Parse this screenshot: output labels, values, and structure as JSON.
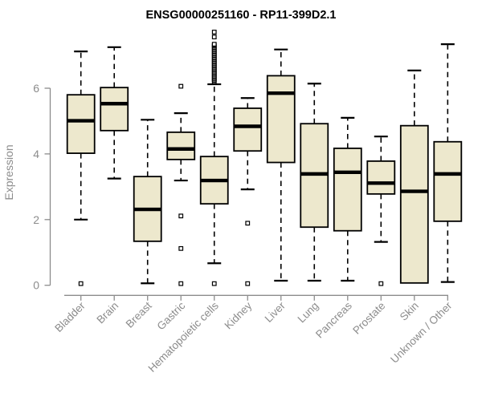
{
  "page": {
    "background": "#ffffff"
  },
  "chart_data": {
    "type": "boxplot",
    "title": "ENSG00000251160 - RP11-399D2.1",
    "ylabel": "Expression",
    "xlabel": "",
    "yticks": [
      0,
      2,
      4,
      6
    ],
    "ylim": [
      -0.15,
      7.9
    ],
    "grid": false,
    "legend": false,
    "categories": [
      "Bladder",
      "Brain",
      "Breast",
      "Gastric",
      "Hematopoietic cells",
      "Kidney",
      "Liver",
      "Lung",
      "Pancreas",
      "Prostate",
      "Skin",
      "Unknown / Other"
    ],
    "series": [
      {
        "name": "Bladder",
        "whisker_low": 2.0,
        "q1": 4.02,
        "median": 5.01,
        "q3": 5.8,
        "whisker_high": 7.12,
        "outliers": [
          0.05
        ]
      },
      {
        "name": "Brain",
        "whisker_low": 3.25,
        "q1": 4.71,
        "median": 5.53,
        "q3": 6.02,
        "whisker_high": 7.25,
        "outliers": []
      },
      {
        "name": "Breast",
        "whisker_low": 0.06,
        "q1": 1.34,
        "median": 2.31,
        "q3": 3.31,
        "whisker_high": 5.04,
        "outliers": []
      },
      {
        "name": "Gastric",
        "whisker_low": 3.19,
        "q1": 3.83,
        "median": 4.15,
        "q3": 4.66,
        "whisker_high": 5.24,
        "outliers": [
          6.06,
          2.11,
          1.12,
          0.05
        ]
      },
      {
        "name": "Hematopoietic cells",
        "whisker_low": 0.67,
        "q1": 2.48,
        "median": 3.19,
        "q3": 3.92,
        "whisker_high": 6.12,
        "outliers": [
          0.05,
          6.2,
          6.24,
          6.28,
          6.32,
          6.36,
          6.4,
          6.44,
          6.48,
          6.52,
          6.56,
          6.6,
          6.64,
          6.68,
          6.72,
          6.76,
          6.8,
          6.84,
          6.88,
          6.92,
          6.96,
          7.0,
          7.04,
          7.08,
          7.12,
          7.16,
          7.2,
          7.24,
          7.28,
          7.31,
          7.34,
          7.56,
          7.71
        ]
      },
      {
        "name": "Kidney",
        "whisker_low": 2.92,
        "q1": 4.09,
        "median": 4.84,
        "q3": 5.39,
        "whisker_high": 5.7,
        "outliers": [
          1.89,
          0.05
        ]
      },
      {
        "name": "Liver",
        "whisker_low": 0.14,
        "q1": 3.74,
        "median": 5.85,
        "q3": 6.38,
        "whisker_high": 7.18,
        "outliers": []
      },
      {
        "name": "Lung",
        "whisker_low": 0.14,
        "q1": 1.77,
        "median": 3.39,
        "q3": 4.92,
        "whisker_high": 6.14,
        "outliers": []
      },
      {
        "name": "Pancreas",
        "whisker_low": 0.14,
        "q1": 1.66,
        "median": 3.44,
        "q3": 4.17,
        "whisker_high": 5.1,
        "outliers": []
      },
      {
        "name": "Prostate",
        "whisker_low": 1.32,
        "q1": 2.78,
        "median": 3.11,
        "q3": 3.78,
        "whisker_high": 4.53,
        "outliers": [
          0.05
        ]
      },
      {
        "name": "Skin",
        "whisker_low": 0.07,
        "q1": 0.07,
        "median": 2.86,
        "q3": 4.86,
        "whisker_high": 6.54,
        "outliers": []
      },
      {
        "name": "Unknown / Other",
        "whisker_low": 0.1,
        "q1": 1.95,
        "median": 3.39,
        "q3": 4.37,
        "whisker_high": 7.34,
        "outliers": []
      }
    ],
    "colors": {
      "box_fill": "#EDE8CD",
      "box_stroke": "#000000",
      "median": "#000000",
      "whisker": "#000000",
      "outlier_fill": "#ffffff",
      "axis": "#8c8c8c",
      "tick_label": "#8c8c8c",
      "title": "#000000",
      "background": "#ffffff"
    }
  }
}
